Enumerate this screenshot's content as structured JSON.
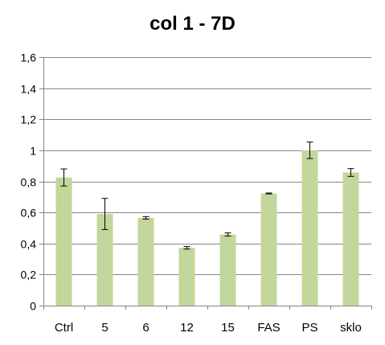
{
  "chart_data": {
    "type": "bar",
    "title": "col 1 - 7D",
    "xlabel": "",
    "ylabel": "",
    "categories": [
      "Ctrl",
      "5",
      "6",
      "12",
      "15",
      "FAS",
      "PS",
      "sklo"
    ],
    "values": [
      0.825,
      0.59,
      0.565,
      0.372,
      0.458,
      0.722,
      1.0,
      0.857
    ],
    "error_bars": [
      0.055,
      0.1,
      0.008,
      0.008,
      0.01,
      0.003,
      0.053,
      0.025
    ],
    "ylim": [
      0,
      1.6
    ],
    "yticks": [
      0,
      0.2,
      0.4,
      0.6,
      0.8,
      1,
      1.2,
      1.4,
      1.6
    ],
    "ytick_labels": [
      "0",
      "0,2",
      "0,4",
      "0,6",
      "0,8",
      "1",
      "1,2",
      "1,4",
      "1,6"
    ],
    "grid": true,
    "legend": "none",
    "colors": {
      "bar": "#c3d69b",
      "grid": "#868686",
      "axis": "#868686",
      "error": "#000000"
    }
  }
}
